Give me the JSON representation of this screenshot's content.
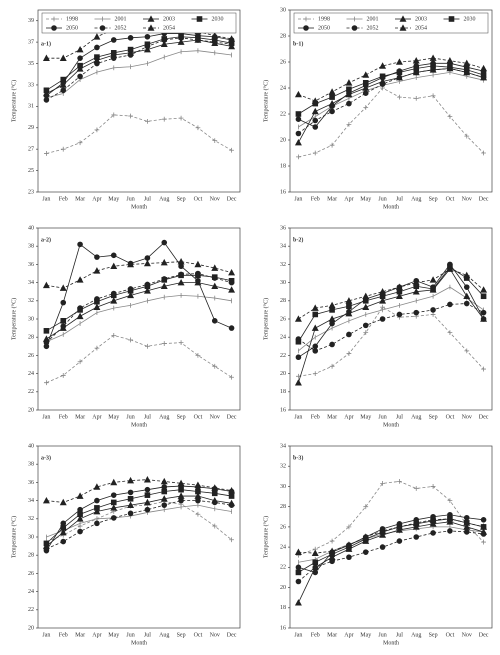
{
  "chart_data": [
    {
      "type": "line",
      "panel_label": "a-1)",
      "x_label": "Month",
      "y_label": "Temperature (°C)",
      "legend": true,
      "categories": [
        "Jan",
        "Feb",
        "Mar",
        "Apr",
        "May",
        "Jun",
        "Jul",
        "Aug",
        "Sep",
        "Oct",
        "Nov",
        "Dec"
      ],
      "ylim": [
        23,
        40
      ],
      "yticks": [
        23,
        25,
        27,
        29,
        31,
        33,
        35,
        37,
        39
      ],
      "series": [
        {
          "name": "1998",
          "color": "#888888",
          "dash": true,
          "marker": "plus",
          "values": [
            26.6,
            27,
            27.6,
            28.8,
            30.2,
            30.1,
            29.6,
            29.8,
            29.9,
            29,
            27.8,
            26.9
          ]
        },
        {
          "name": "2001",
          "color": "#888888",
          "dash": false,
          "marker": "tick",
          "values": [
            31.8,
            32.2,
            33.5,
            34.2,
            34.6,
            34.7,
            35,
            35.6,
            36.1,
            36.2,
            36,
            35.8
          ]
        },
        {
          "name": "2003",
          "color": "#222222",
          "dash": false,
          "marker": "triangle",
          "values": [
            32.2,
            33,
            34.5,
            35.3,
            35.8,
            36,
            36.3,
            36.8,
            37,
            37.2,
            36.9,
            36.6
          ]
        },
        {
          "name": "2030",
          "color": "#222222",
          "dash": false,
          "marker": "square",
          "values": [
            32.5,
            33.5,
            34.8,
            35.6,
            36,
            36.3,
            36.8,
            37.3,
            37.5,
            37.4,
            37.2,
            36.9
          ]
        },
        {
          "name": "2050",
          "color": "#222222",
          "dash": false,
          "marker": "circle",
          "values": [
            32,
            33.2,
            35.5,
            36.5,
            37.2,
            37.4,
            37.5,
            37.8,
            37.8,
            37.6,
            37.5,
            37.2
          ]
        },
        {
          "name": "2052",
          "color": "#222222",
          "dash": true,
          "marker": "circle",
          "values": [
            31.6,
            32.5,
            33.8,
            35,
            35.5,
            35.8,
            36.6,
            37.2,
            37.4,
            37.2,
            37,
            36.8
          ]
        },
        {
          "name": "2054",
          "color": "#222222",
          "dash": true,
          "marker": "triangle",
          "values": [
            35.5,
            35.5,
            36.3,
            37.5,
            38.2,
            38.3,
            38.2,
            38.2,
            38.2,
            38,
            37.6,
            37.3
          ]
        }
      ]
    },
    {
      "type": "line",
      "panel_label": "b-1)",
      "x_label": "Month",
      "y_label": "Temperature (°C)",
      "legend": true,
      "categories": [
        "Jan",
        "Feb",
        "Mar",
        "Apr",
        "May",
        "Jun",
        "Jul",
        "Aug",
        "Sep",
        "Oct",
        "Nov",
        "Dec"
      ],
      "ylim": [
        16,
        30
      ],
      "yticks": [
        16,
        18,
        20,
        22,
        24,
        26,
        28,
        30
      ],
      "series": [
        {
          "name": "1998",
          "color": "#888888",
          "dash": true,
          "marker": "plus",
          "values": [
            18.7,
            19,
            19.6,
            21.2,
            22.5,
            24,
            23.3,
            23.2,
            23.4,
            21.8,
            20.3,
            19
          ]
        },
        {
          "name": "2001",
          "color": "#888888",
          "dash": false,
          "marker": "tick",
          "values": [
            21,
            21.8,
            22.6,
            23.2,
            23.8,
            24.2,
            24.5,
            24.8,
            25,
            25.2,
            24.9,
            24.6
          ]
        },
        {
          "name": "2003",
          "color": "#222222",
          "dash": false,
          "marker": "triangle",
          "values": [
            19.8,
            22.2,
            22.8,
            23.5,
            24,
            24.5,
            24.8,
            25.2,
            25.4,
            25.5,
            25.2,
            24.8
          ]
        },
        {
          "name": "2030",
          "color": "#222222",
          "dash": false,
          "marker": "square",
          "values": [
            22,
            22.8,
            23.3,
            23.9,
            24.4,
            24.9,
            25.2,
            25.5,
            25.7,
            25.6,
            25.4,
            25
          ]
        },
        {
          "name": "2050",
          "color": "#222222",
          "dash": false,
          "marker": "circle",
          "values": [
            21.6,
            21,
            22.6,
            23.6,
            24.2,
            24.8,
            25.3,
            25.7,
            25.9,
            25.9,
            25.6,
            25.3
          ]
        },
        {
          "name": "2052",
          "color": "#222222",
          "dash": true,
          "marker": "circle",
          "values": [
            20.5,
            21.5,
            22.2,
            22.8,
            23.6,
            24.3,
            24.8,
            25.2,
            25.4,
            25.5,
            25.2,
            24.8
          ]
        },
        {
          "name": "2054",
          "color": "#222222",
          "dash": true,
          "marker": "triangle",
          "values": [
            23.5,
            23,
            23.7,
            24.4,
            25,
            25.7,
            26,
            26.1,
            26.3,
            26.1,
            25.9,
            25.5
          ]
        }
      ]
    },
    {
      "type": "line",
      "panel_label": "a-2)",
      "x_label": "Month",
      "y_label": "Temperature (°C)",
      "legend": false,
      "categories": [
        "Jan",
        "Feb",
        "Mar",
        "Apr",
        "May",
        "Jun",
        "Jul",
        "Aug",
        "Sep",
        "Oct",
        "Nov",
        "Dec"
      ],
      "ylim": [
        20,
        40
      ],
      "yticks": [
        20,
        22,
        24,
        26,
        28,
        30,
        32,
        34,
        36,
        38,
        40
      ],
      "series": [
        {
          "color": "#888888",
          "dash": true,
          "marker": "plus",
          "values": [
            23,
            23.8,
            25.3,
            26.8,
            28.2,
            27.7,
            27,
            27.3,
            27.4,
            26,
            24.8,
            23.6
          ]
        },
        {
          "color": "#888888",
          "dash": false,
          "marker": "tick",
          "values": [
            27.5,
            28.3,
            29.5,
            30.7,
            31.2,
            31.5,
            32,
            32.4,
            32.6,
            32.5,
            32.3,
            32
          ]
        },
        {
          "color": "#222222",
          "dash": false,
          "marker": "triangle",
          "values": [
            27.8,
            29,
            30.3,
            31.3,
            32,
            32.6,
            33.1,
            33.6,
            34,
            34,
            33.6,
            33.2
          ]
        },
        {
          "color": "#222222",
          "dash": false,
          "marker": "square",
          "values": [
            28.7,
            29.8,
            31,
            31.9,
            32.6,
            33.1,
            33.6,
            34.3,
            34.8,
            34.8,
            34.6,
            34.2
          ]
        },
        {
          "color": "#222222",
          "dash": false,
          "marker": "circle",
          "values": [
            27,
            31.8,
            38.2,
            36.8,
            37,
            36.1,
            36.7,
            38.4,
            35.8,
            34.2,
            29.8,
            29
          ]
        },
        {
          "color": "#222222",
          "dash": true,
          "marker": "circle",
          "values": [
            27.4,
            29.2,
            31.2,
            32.2,
            32.8,
            33.3,
            33.8,
            34.4,
            34.9,
            35,
            34.5,
            34
          ]
        },
        {
          "color": "#222222",
          "dash": true,
          "marker": "triangle",
          "values": [
            33.7,
            33.4,
            34.3,
            35.3,
            35.8,
            36,
            36.1,
            36.2,
            36.3,
            36,
            35.6,
            35.1
          ]
        }
      ]
    },
    {
      "type": "line",
      "panel_label": "b-2)",
      "x_label": "Month",
      "y_label": "Temperature (°C)",
      "legend": false,
      "categories": [
        "Jan",
        "Feb",
        "Mar",
        "Apr",
        "May",
        "Jun",
        "Jul",
        "Aug",
        "Sep",
        "Oct",
        "Nov",
        "Dec"
      ],
      "ylim": [
        16,
        36
      ],
      "yticks": [
        16,
        18,
        20,
        22,
        24,
        26,
        28,
        30,
        32,
        34,
        36
      ],
      "series": [
        {
          "color": "#888888",
          "dash": true,
          "marker": "plus",
          "values": [
            19.7,
            20,
            20.8,
            22.2,
            24.5,
            27.3,
            26.2,
            26.3,
            26.5,
            24.5,
            22.5,
            20.5
          ]
        },
        {
          "color": "#888888",
          "dash": false,
          "marker": "tick",
          "values": [
            22.5,
            24,
            25,
            25.8,
            26.5,
            27,
            27.5,
            28,
            28.5,
            29.5,
            28.3,
            27
          ]
        },
        {
          "color": "#222222",
          "dash": false,
          "marker": "triangle",
          "values": [
            19,
            25,
            26,
            26.6,
            27.3,
            28,
            28.5,
            29,
            29.2,
            31.5,
            28.5,
            26
          ]
        },
        {
          "color": "#222222",
          "dash": false,
          "marker": "square",
          "values": [
            23.5,
            26.5,
            27,
            27.4,
            28,
            28.5,
            29,
            29.6,
            29.3,
            31.7,
            30.5,
            28.5
          ]
        },
        {
          "color": "#222222",
          "dash": false,
          "marker": "circle",
          "values": [
            21.8,
            23,
            25.5,
            26.8,
            28.2,
            28.8,
            29.5,
            30.2,
            29.5,
            32,
            29.5,
            26
          ]
        },
        {
          "color": "#222222",
          "dash": true,
          "marker": "circle",
          "values": [
            23.8,
            22.5,
            23.2,
            24.3,
            25.3,
            26,
            26.5,
            26.7,
            27,
            27.6,
            27.7,
            26.7
          ]
        },
        {
          "color": "#222222",
          "dash": true,
          "marker": "triangle",
          "values": [
            26,
            27.2,
            27.5,
            28,
            28.5,
            29,
            29.5,
            30,
            30.3,
            31.5,
            30.8,
            29.2
          ]
        }
      ]
    },
    {
      "type": "line",
      "panel_label": "a-3)",
      "x_label": "Month",
      "y_label": "Temperature (°C)",
      "legend": false,
      "categories": [
        "Jan",
        "Feb",
        "Mar",
        "Apr",
        "May",
        "Jun",
        "Jul",
        "Aug",
        "Sep",
        "Oct",
        "Nov",
        "Dec"
      ],
      "ylim": [
        20,
        40
      ],
      "yticks": [
        20,
        22,
        24,
        26,
        28,
        30,
        32,
        34,
        36,
        38,
        40
      ],
      "series": [
        {
          "color": "#888888",
          "dash": true,
          "marker": "plus",
          "values": [
            29.5,
            30.2,
            31.2,
            32,
            32.8,
            33.4,
            33.5,
            33.9,
            33.6,
            32.5,
            31.2,
            29.7
          ]
        },
        {
          "color": "#888888",
          "dash": false,
          "marker": "tick",
          "values": [
            30,
            30.7,
            31.5,
            32,
            32.1,
            32.3,
            32.7,
            33,
            33.3,
            33.5,
            33.1,
            32.8
          ]
        },
        {
          "color": "#222222",
          "dash": false,
          "marker": "triangle",
          "values": [
            29,
            30.5,
            32,
            32.8,
            33.2,
            33.5,
            33.8,
            34.2,
            34.5,
            34.5,
            34,
            33.7
          ]
        },
        {
          "color": "#222222",
          "dash": false,
          "marker": "square",
          "values": [
            29.3,
            31,
            32.5,
            33.2,
            33.8,
            34.2,
            34.6,
            35,
            35.2,
            35,
            34.8,
            34.5
          ]
        },
        {
          "color": "#222222",
          "dash": false,
          "marker": "circle",
          "values": [
            28.5,
            31.5,
            33,
            34,
            34.6,
            34.9,
            35.2,
            35.5,
            35.6,
            35.5,
            35.3,
            35
          ]
        },
        {
          "color": "#222222",
          "dash": true,
          "marker": "circle",
          "values": [
            28.7,
            29.5,
            30.6,
            31.5,
            32.1,
            32.6,
            33,
            33.5,
            34,
            34,
            33.8,
            33.5
          ]
        },
        {
          "color": "#222222",
          "dash": true,
          "marker": "triangle",
          "values": [
            34,
            33.8,
            34.5,
            35.5,
            36,
            36.2,
            36.3,
            36.1,
            35.9,
            35.7,
            35.4,
            35.1
          ]
        }
      ]
    },
    {
      "type": "line",
      "panel_label": "b-3)",
      "x_label": "Month",
      "y_label": "Temperature (°C)",
      "legend": false,
      "categories": [
        "Jan",
        "Feb",
        "Mar",
        "Apr",
        "May",
        "Jun",
        "Jul",
        "Aug",
        "Sep",
        "Oct",
        "Nov",
        "Dec"
      ],
      "ylim": [
        16,
        34
      ],
      "yticks": [
        16,
        18,
        20,
        22,
        24,
        26,
        28,
        30,
        32,
        34
      ],
      "series": [
        {
          "color": "#888888",
          "dash": true,
          "marker": "plus",
          "values": [
            23.2,
            23.8,
            24.6,
            26,
            28,
            30.3,
            30.5,
            29.8,
            30,
            28.6,
            26.2,
            24.5
          ]
        },
        {
          "color": "#888888",
          "dash": false,
          "marker": "tick",
          "values": [
            22.5,
            22.8,
            23.6,
            24.3,
            24.8,
            25.3,
            25.6,
            25.8,
            26,
            26,
            25.7,
            25.5
          ]
        },
        {
          "color": "#222222",
          "dash": false,
          "marker": "triangle",
          "values": [
            18.5,
            22,
            23,
            23.8,
            24.6,
            25.2,
            25.7,
            26,
            26.3,
            26.5,
            26,
            25.5
          ]
        },
        {
          "color": "#222222",
          "dash": false,
          "marker": "square",
          "values": [
            21.5,
            22.5,
            23.3,
            24,
            24.8,
            25.5,
            26,
            26.3,
            26.6,
            26.8,
            26.4,
            26
          ]
        },
        {
          "color": "#222222",
          "dash": false,
          "marker": "circle",
          "values": [
            22,
            21.5,
            23.5,
            24.2,
            25,
            25.8,
            26.3,
            26.7,
            27,
            27.2,
            26.9,
            26.7
          ]
        },
        {
          "color": "#222222",
          "dash": true,
          "marker": "circle",
          "values": [
            20.6,
            22,
            22.6,
            23,
            23.5,
            24,
            24.6,
            25,
            25.4,
            25.6,
            25.5,
            25.3
          ]
        },
        {
          "color": "#222222",
          "dash": true,
          "marker": "triangle",
          "values": [
            23.5,
            23.4,
            23.6,
            24.2,
            25,
            25.6,
            26,
            26.4,
            26.7,
            26.8,
            26.4,
            26
          ]
        }
      ]
    }
  ]
}
